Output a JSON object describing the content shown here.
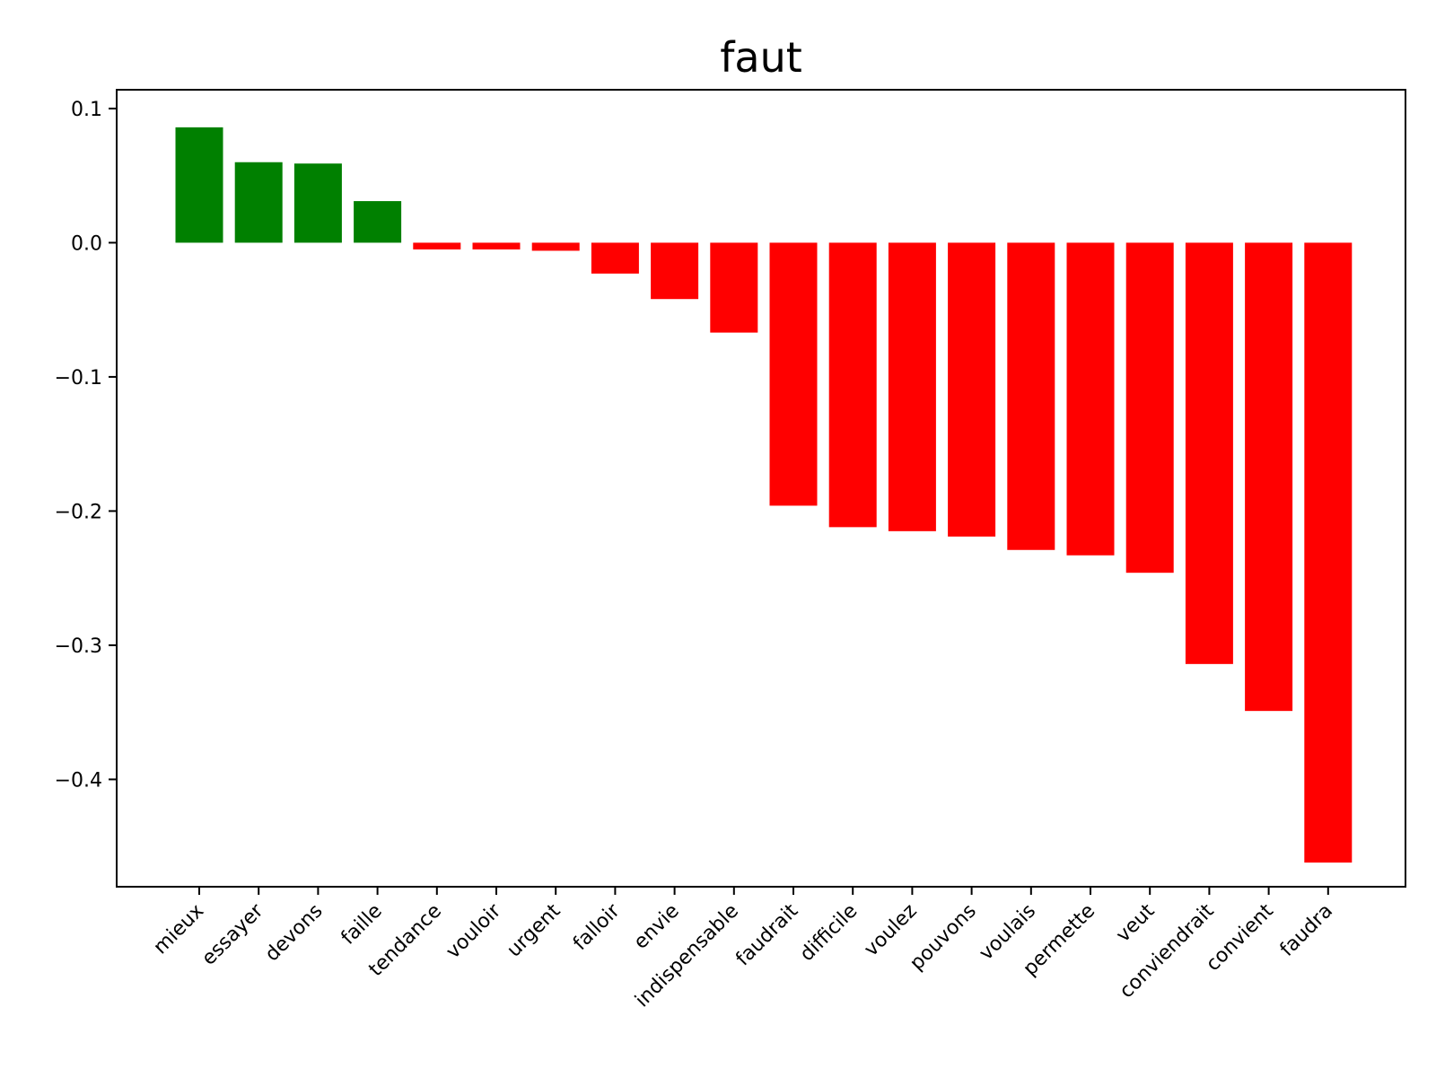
{
  "chart_data": {
    "type": "bar",
    "title": "faut",
    "xlabel": "",
    "ylabel": "",
    "ylim": [
      -0.48,
      0.114
    ],
    "yticks": [
      0.1,
      0.0,
      -0.1,
      -0.2,
      -0.3,
      -0.4
    ],
    "ytick_labels": [
      "0.1",
      "0.0",
      "−0.1",
      "−0.2",
      "−0.3",
      "−0.4"
    ],
    "categories": [
      "mieux",
      "essayer",
      "devons",
      "faille",
      "tendance",
      "vouloir",
      "urgent",
      "falloir",
      "envie",
      "indispensable",
      "faudrait",
      "difficile",
      "voulez",
      "pouvons",
      "voulais",
      "permette",
      "veut",
      "conviendrait",
      "convient",
      "faudra"
    ],
    "values": [
      0.086,
      0.06,
      0.059,
      0.031,
      -0.005,
      -0.005,
      -0.006,
      -0.023,
      -0.042,
      -0.067,
      -0.196,
      -0.212,
      -0.215,
      -0.219,
      -0.229,
      -0.233,
      -0.246,
      -0.314,
      -0.349,
      -0.462
    ],
    "grid": false,
    "colors": {
      "positive": "#008000",
      "negative": "#ff0000",
      "axis": "#000000",
      "background": "#ffffff"
    }
  }
}
